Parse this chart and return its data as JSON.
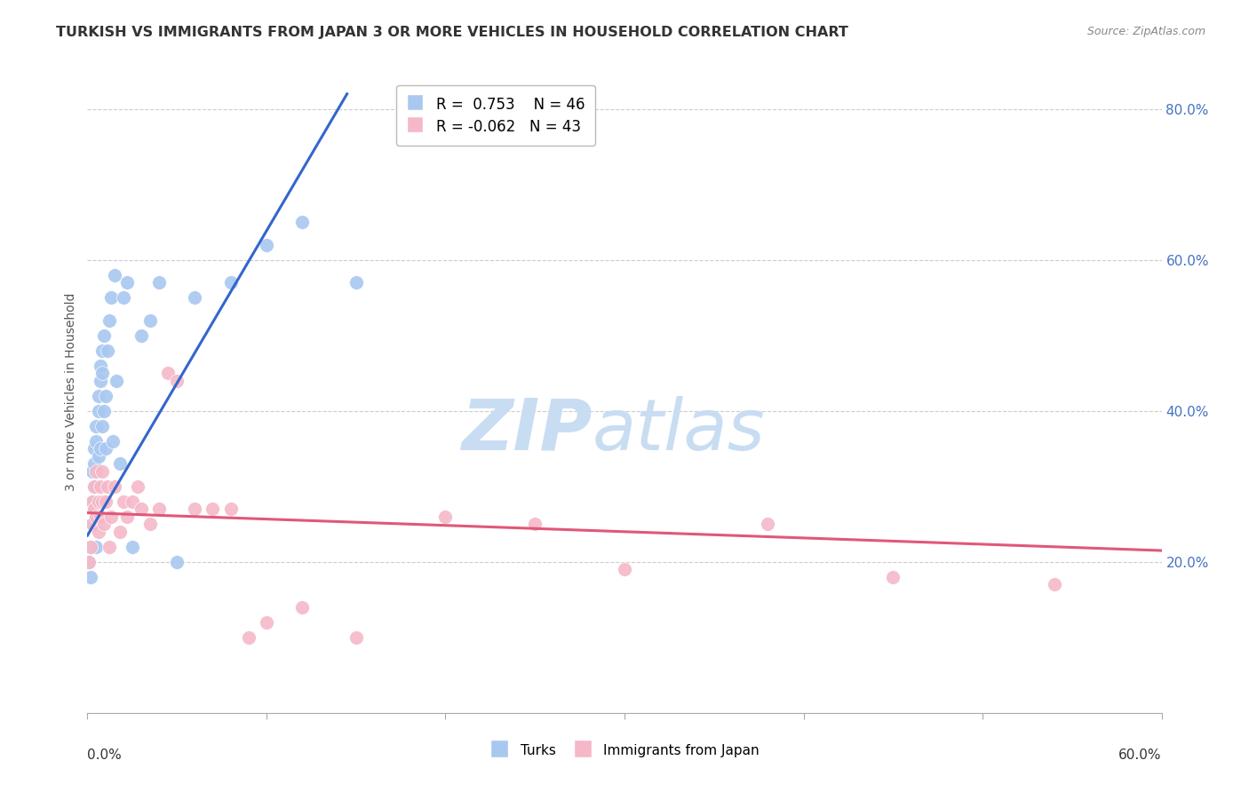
{
  "title": "TURKISH VS IMMIGRANTS FROM JAPAN 3 OR MORE VEHICLES IN HOUSEHOLD CORRELATION CHART",
  "source": "Source: ZipAtlas.com",
  "ylabel": "3 or more Vehicles in Household",
  "xmin": 0.0,
  "xmax": 0.6,
  "ymin": 0.0,
  "ymax": 0.85,
  "yticks": [
    0.2,
    0.4,
    0.6,
    0.8
  ],
  "ytick_labels": [
    "20.0%",
    "40.0%",
    "60.0%",
    "80.0%"
  ],
  "xtick_positions": [
    0.0,
    0.1,
    0.2,
    0.3,
    0.4,
    0.5,
    0.6
  ],
  "grid_color": "#cccccc",
  "background_color": "#ffffff",
  "turks_color": "#a8c8f0",
  "japan_color": "#f5b8c8",
  "turks_line_color": "#3366cc",
  "japan_line_color": "#e05878",
  "watermark_zip_color": "#c8ddf0",
  "watermark_atlas_color": "#c8ddf0",
  "legend_r_turks": "R =  0.753",
  "legend_n_turks": "N = 46",
  "legend_r_japan": "R = -0.062",
  "legend_n_japan": "N = 43",
  "turks_x": [
    0.001,
    0.002,
    0.002,
    0.003,
    0.003,
    0.003,
    0.004,
    0.004,
    0.004,
    0.004,
    0.005,
    0.005,
    0.005,
    0.005,
    0.006,
    0.006,
    0.006,
    0.007,
    0.007,
    0.007,
    0.008,
    0.008,
    0.008,
    0.009,
    0.009,
    0.01,
    0.01,
    0.011,
    0.012,
    0.013,
    0.014,
    0.015,
    0.016,
    0.018,
    0.02,
    0.022,
    0.025,
    0.03,
    0.035,
    0.04,
    0.05,
    0.06,
    0.08,
    0.1,
    0.12,
    0.15
  ],
  "turks_y": [
    0.2,
    0.22,
    0.18,
    0.25,
    0.28,
    0.32,
    0.3,
    0.33,
    0.27,
    0.35,
    0.3,
    0.36,
    0.38,
    0.22,
    0.34,
    0.4,
    0.42,
    0.35,
    0.44,
    0.46,
    0.38,
    0.45,
    0.48,
    0.4,
    0.5,
    0.35,
    0.42,
    0.48,
    0.52,
    0.55,
    0.36,
    0.58,
    0.44,
    0.33,
    0.55,
    0.57,
    0.22,
    0.5,
    0.52,
    0.57,
    0.2,
    0.55,
    0.57,
    0.62,
    0.65,
    0.57
  ],
  "japan_x": [
    0.001,
    0.002,
    0.003,
    0.003,
    0.004,
    0.004,
    0.005,
    0.005,
    0.006,
    0.006,
    0.007,
    0.007,
    0.008,
    0.008,
    0.009,
    0.01,
    0.011,
    0.012,
    0.013,
    0.015,
    0.018,
    0.02,
    0.022,
    0.025,
    0.028,
    0.03,
    0.035,
    0.04,
    0.045,
    0.05,
    0.06,
    0.07,
    0.08,
    0.09,
    0.1,
    0.12,
    0.15,
    0.2,
    0.25,
    0.3,
    0.38,
    0.45,
    0.54
  ],
  "japan_y": [
    0.2,
    0.22,
    0.25,
    0.28,
    0.3,
    0.27,
    0.26,
    0.32,
    0.24,
    0.28,
    0.3,
    0.26,
    0.28,
    0.32,
    0.25,
    0.28,
    0.3,
    0.22,
    0.26,
    0.3,
    0.24,
    0.28,
    0.26,
    0.28,
    0.3,
    0.27,
    0.25,
    0.27,
    0.45,
    0.44,
    0.27,
    0.27,
    0.27,
    0.1,
    0.12,
    0.14,
    0.1,
    0.26,
    0.25,
    0.19,
    0.25,
    0.18,
    0.17
  ],
  "turks_line_x0": 0.0,
  "turks_line_x1": 0.145,
  "turks_line_y0": 0.235,
  "turks_line_y1": 0.82,
  "japan_line_x0": 0.0,
  "japan_line_x1": 0.6,
  "japan_line_y0": 0.265,
  "japan_line_y1": 0.215
}
